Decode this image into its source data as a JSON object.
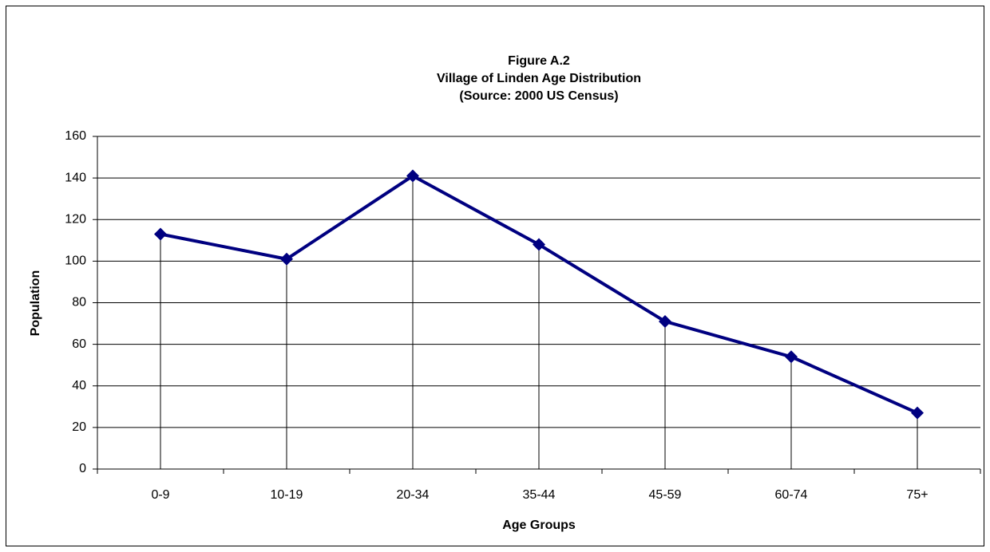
{
  "chart_data": {
    "type": "line",
    "title": [
      "Figure A.2",
      "Village of Linden Age Distribution",
      "(Source:  2000 US Census)"
    ],
    "x_label": "Age Groups",
    "y_label": "Population",
    "categories": [
      "0-9",
      "10-19",
      "20-34",
      "35-44",
      "45-59",
      "60-74",
      "75+"
    ],
    "values": [
      113,
      101,
      141,
      108,
      71,
      54,
      27
    ],
    "color": "#000080",
    "marker": "diamond",
    "drop_lines": true,
    "ylim": [
      0,
      160
    ],
    "yticks": [
      0,
      20,
      40,
      60,
      80,
      100,
      120,
      140,
      160
    ],
    "grid": true
  }
}
